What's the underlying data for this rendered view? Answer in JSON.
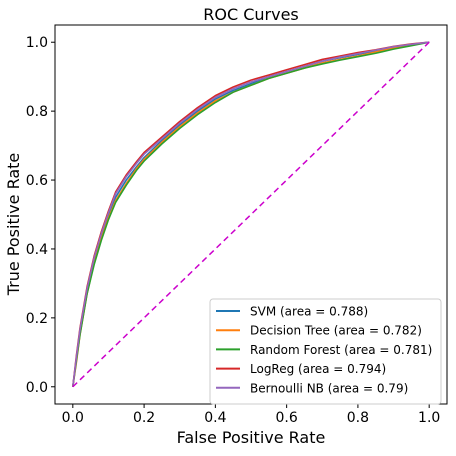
{
  "chart_data": {
    "type": "line",
    "title": "ROC Curves",
    "xlabel": "False Positive Rate",
    "ylabel": "True Positive Rate",
    "xlim": [
      -0.05,
      1.05
    ],
    "ylim": [
      -0.05,
      1.05
    ],
    "xticks": [
      0.0,
      0.2,
      0.4,
      0.6,
      0.8,
      1.0
    ],
    "yticks": [
      0.0,
      0.2,
      0.4,
      0.6,
      0.8,
      1.0
    ],
    "xtick_labels": [
      "0.0",
      "0.2",
      "0.4",
      "0.6",
      "0.8",
      "1.0"
    ],
    "ytick_labels": [
      "0.0",
      "0.2",
      "0.4",
      "0.6",
      "0.8",
      "1.0"
    ],
    "grid": false,
    "legend_position": "lower-right",
    "series": [
      {
        "name": "SVM (area = 0.788)",
        "color": "#1f77b4",
        "x": [
          0.0,
          0.01,
          0.02,
          0.04,
          0.06,
          0.08,
          0.1,
          0.12,
          0.15,
          0.18,
          0.2,
          0.25,
          0.3,
          0.35,
          0.4,
          0.45,
          0.5,
          0.55,
          0.6,
          0.65,
          0.7,
          0.75,
          0.8,
          0.85,
          0.9,
          0.95,
          1.0
        ],
        "y": [
          0.0,
          0.08,
          0.16,
          0.28,
          0.37,
          0.44,
          0.5,
          0.55,
          0.6,
          0.64,
          0.665,
          0.715,
          0.76,
          0.8,
          0.835,
          0.86,
          0.88,
          0.9,
          0.915,
          0.93,
          0.945,
          0.955,
          0.965,
          0.975,
          0.985,
          0.993,
          1.0
        ]
      },
      {
        "name": "Decision Tree (area = 0.782)",
        "color": "#ff7f0e",
        "x": [
          0.0,
          0.01,
          0.02,
          0.04,
          0.06,
          0.08,
          0.1,
          0.12,
          0.15,
          0.18,
          0.2,
          0.25,
          0.3,
          0.35,
          0.4,
          0.45,
          0.5,
          0.55,
          0.6,
          0.65,
          0.7,
          0.75,
          0.8,
          0.85,
          0.9,
          0.95,
          1.0
        ],
        "y": [
          0.0,
          0.07,
          0.15,
          0.27,
          0.36,
          0.43,
          0.49,
          0.54,
          0.59,
          0.635,
          0.66,
          0.71,
          0.755,
          0.795,
          0.83,
          0.855,
          0.875,
          0.895,
          0.91,
          0.925,
          0.94,
          0.95,
          0.96,
          0.972,
          0.983,
          0.992,
          1.0
        ]
      },
      {
        "name": "Random Forest (area = 0.781)",
        "color": "#2ca02c",
        "x": [
          0.0,
          0.01,
          0.02,
          0.04,
          0.06,
          0.08,
          0.1,
          0.12,
          0.15,
          0.18,
          0.2,
          0.25,
          0.3,
          0.35,
          0.4,
          0.45,
          0.5,
          0.55,
          0.6,
          0.65,
          0.7,
          0.75,
          0.8,
          0.85,
          0.9,
          0.95,
          1.0
        ],
        "y": [
          0.0,
          0.075,
          0.15,
          0.27,
          0.355,
          0.425,
          0.485,
          0.535,
          0.585,
          0.63,
          0.655,
          0.705,
          0.75,
          0.79,
          0.825,
          0.855,
          0.875,
          0.895,
          0.91,
          0.925,
          0.937,
          0.948,
          0.958,
          0.968,
          0.98,
          0.99,
          1.0
        ]
      },
      {
        "name": "LogReg (area = 0.794)",
        "color": "#d62728",
        "x": [
          0.0,
          0.01,
          0.02,
          0.04,
          0.06,
          0.08,
          0.1,
          0.12,
          0.15,
          0.18,
          0.2,
          0.25,
          0.3,
          0.35,
          0.4,
          0.45,
          0.5,
          0.55,
          0.6,
          0.65,
          0.7,
          0.75,
          0.8,
          0.85,
          0.9,
          0.95,
          1.0
        ],
        "y": [
          0.0,
          0.09,
          0.17,
          0.29,
          0.38,
          0.45,
          0.51,
          0.565,
          0.615,
          0.655,
          0.68,
          0.725,
          0.77,
          0.81,
          0.845,
          0.87,
          0.89,
          0.905,
          0.92,
          0.935,
          0.95,
          0.96,
          0.97,
          0.978,
          0.988,
          0.995,
          1.0
        ]
      },
      {
        "name": "Bernoulli NB (area = 0.79)",
        "color": "#9467bd",
        "x": [
          0.0,
          0.01,
          0.02,
          0.04,
          0.06,
          0.08,
          0.1,
          0.12,
          0.15,
          0.18,
          0.2,
          0.25,
          0.3,
          0.35,
          0.4,
          0.45,
          0.5,
          0.55,
          0.6,
          0.65,
          0.7,
          0.75,
          0.8,
          0.85,
          0.9,
          0.95,
          1.0
        ],
        "y": [
          0.0,
          0.085,
          0.165,
          0.285,
          0.375,
          0.445,
          0.505,
          0.56,
          0.61,
          0.65,
          0.675,
          0.72,
          0.765,
          0.805,
          0.84,
          0.865,
          0.885,
          0.9,
          0.915,
          0.93,
          0.945,
          0.957,
          0.967,
          0.977,
          0.987,
          0.994,
          1.0
        ]
      }
    ],
    "reference_line": {
      "x": [
        0.0,
        1.0
      ],
      "y": [
        0.0,
        1.0
      ],
      "color": "#cc00cc",
      "style": "dashed"
    }
  }
}
